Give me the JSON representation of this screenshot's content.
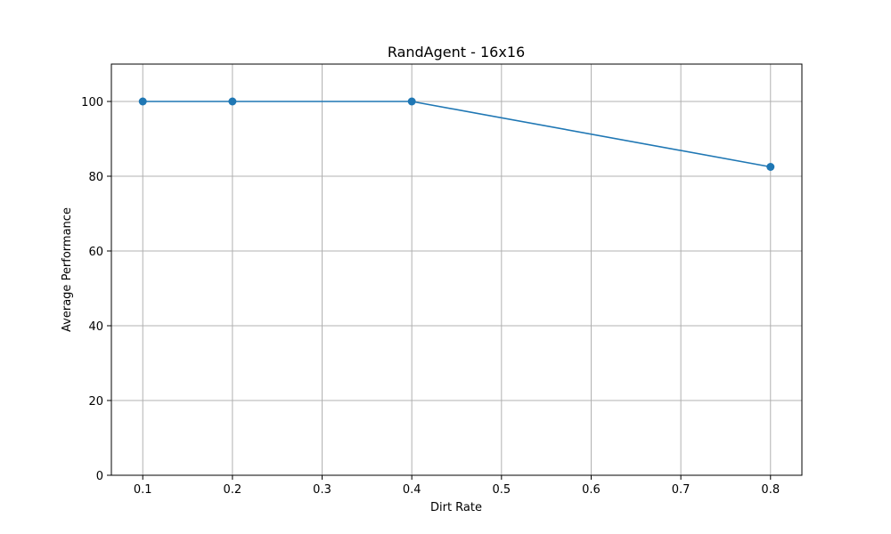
{
  "chart_data": {
    "type": "line",
    "title": "RandAgent - 16x16",
    "xlabel": "Dirt Rate",
    "ylabel": "Average Performance",
    "x": [
      0.1,
      0.2,
      0.4,
      0.8
    ],
    "series": [
      {
        "values": [
          100,
          100,
          100,
          82.5
        ]
      }
    ],
    "xlim": [
      0.065,
      0.835
    ],
    "ylim": [
      0,
      110
    ],
    "xticks": [
      0.1,
      0.2,
      0.3,
      0.4,
      0.5,
      0.6,
      0.7,
      0.8
    ],
    "xtick_labels": [
      "0.1",
      "0.2",
      "0.3",
      "0.4",
      "0.5",
      "0.6",
      "0.7",
      "0.8"
    ],
    "yticks": [
      0,
      20,
      40,
      60,
      80,
      100
    ],
    "ytick_labels": [
      "0",
      "20",
      "40",
      "60",
      "80",
      "100"
    ],
    "grid": true,
    "line_color": "#1f77b4",
    "grid_color": "#b0b0b0"
  }
}
